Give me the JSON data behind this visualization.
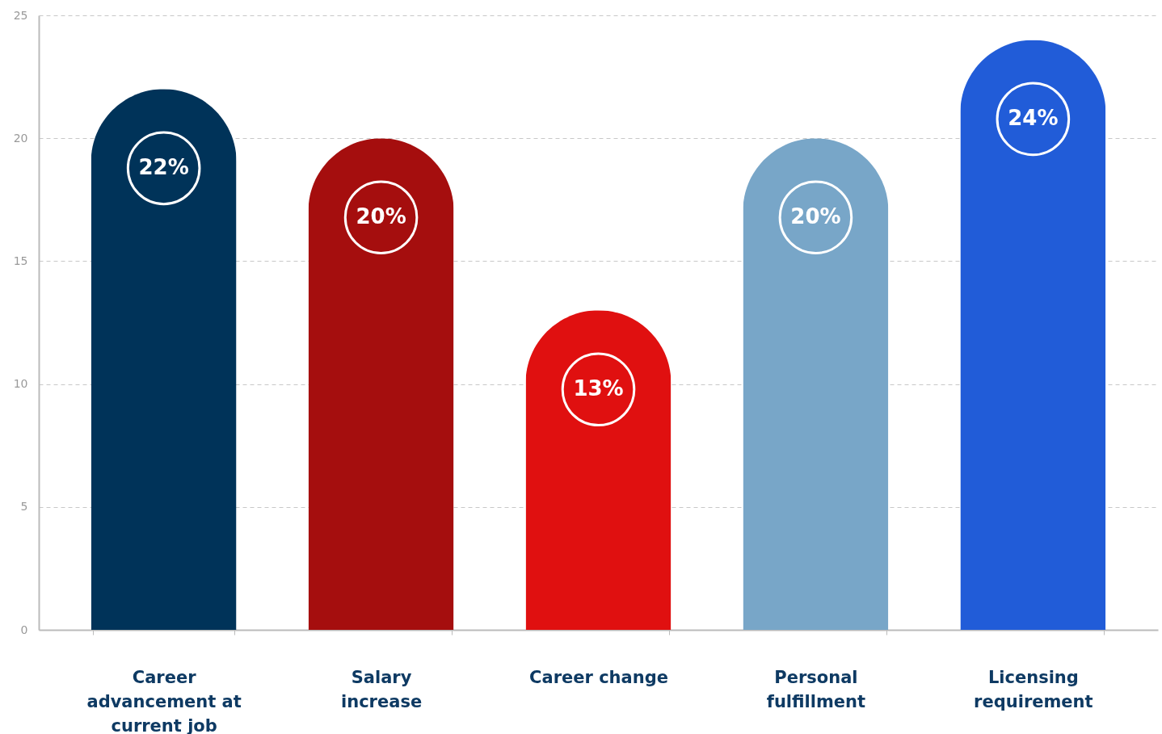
{
  "chart_data": {
    "type": "bar",
    "categories": [
      "Career advancement at current job",
      "Salary increase",
      "Career change",
      "Personal fulfillment",
      "Licensing requirement"
    ],
    "values": [
      22,
      20,
      13,
      20,
      24
    ],
    "colors": [
      "#003359",
      "#a50e0e",
      "#e01010",
      "#78a6c8",
      "#215cd8"
    ],
    "value_labels": [
      "22%",
      "20%",
      "13%",
      "20%",
      "24%"
    ],
    "ylim": [
      0,
      25
    ],
    "yticks": [
      0,
      5,
      10,
      15,
      20,
      25
    ],
    "grid": "y"
  }
}
